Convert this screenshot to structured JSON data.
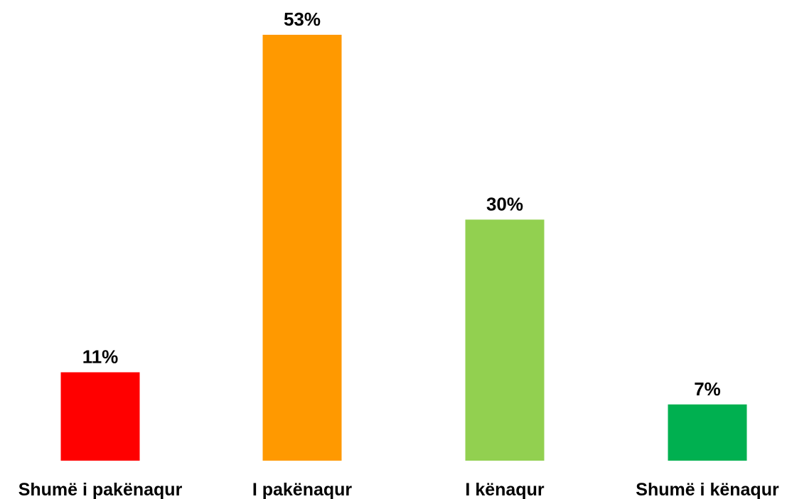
{
  "chart_data": {
    "type": "bar",
    "categories": [
      "Shumë i pakënaqur",
      "I pakënaqur",
      "I kënaqur",
      "Shumë i kënaqur"
    ],
    "values": [
      11,
      53,
      30,
      7
    ],
    "value_labels": [
      "11%",
      "53%",
      "30%",
      "7%"
    ],
    "unit": "%",
    "colors": [
      "#ff0000",
      "#ff9900",
      "#92d050",
      "#00b050"
    ],
    "ylim": [
      0,
      53
    ],
    "grid": false,
    "legend": "none"
  }
}
